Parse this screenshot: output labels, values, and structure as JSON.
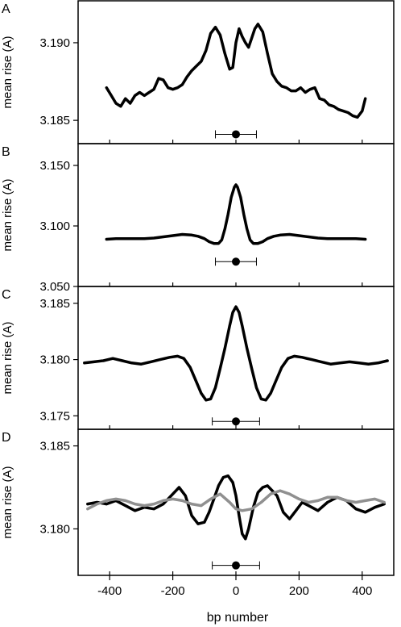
{
  "figure": {
    "xlabel": "bp number",
    "x_ticks": [
      -400,
      -200,
      0,
      200,
      400
    ],
    "x_tick_labels": [
      "-400",
      "-200",
      "0",
      "200",
      "400"
    ],
    "xlim": [
      -500,
      500
    ],
    "line_color": "#000000",
    "secondary_line_color": "#909090"
  },
  "chart_data": [
    {
      "type": "line",
      "panel": "A",
      "ylabel": "mean rise (A)",
      "ylim": [
        3.1835,
        3.1927
      ],
      "y_ticks": [
        3.185,
        3.19
      ],
      "y_tick_labels": [
        "3.185",
        "3.190"
      ],
      "marker": {
        "x": 0,
        "y": 3.1841,
        "err_low": -65,
        "err_high": 65
      },
      "series": [
        {
          "color": "#000000",
          "x": [
            -410,
            -395,
            -380,
            -365,
            -350,
            -335,
            -320,
            -305,
            -290,
            -275,
            -260,
            -245,
            -230,
            -215,
            -200,
            -185,
            -170,
            -155,
            -140,
            -125,
            -110,
            -95,
            -80,
            -65,
            -50,
            -35,
            -20,
            -10,
            0,
            10,
            20,
            30,
            40,
            50,
            60,
            70,
            85,
            100,
            115,
            130,
            145,
            160,
            175,
            190,
            205,
            220,
            235,
            250,
            265,
            280,
            295,
            310,
            325,
            340,
            355,
            370,
            385,
            400,
            410
          ],
          "y": [
            3.1871,
            3.1866,
            3.1861,
            3.1859,
            3.1864,
            3.1861,
            3.1866,
            3.1868,
            3.1866,
            3.1868,
            3.187,
            3.1877,
            3.1876,
            3.1871,
            3.187,
            3.1871,
            3.1873,
            3.1878,
            3.1882,
            3.1885,
            3.1888,
            3.1895,
            3.1906,
            3.191,
            3.1905,
            3.1893,
            3.1883,
            3.1884,
            3.19,
            3.1909,
            3.1904,
            3.19,
            3.1897,
            3.1903,
            3.1909,
            3.1912,
            3.1907,
            3.1893,
            3.188,
            3.1875,
            3.1872,
            3.1871,
            3.1869,
            3.1869,
            3.1871,
            3.1868,
            3.187,
            3.1871,
            3.1864,
            3.1863,
            3.186,
            3.1859,
            3.1857,
            3.1856,
            3.1855,
            3.1853,
            3.1852,
            3.1856,
            3.1864
          ]
        }
      ]
    },
    {
      "type": "line",
      "panel": "B",
      "ylabel": "mean rise (A)",
      "ylim": [
        3.05,
        3.168
      ],
      "y_ticks": [
        3.05,
        3.1,
        3.15
      ],
      "y_tick_labels": [
        "3.050",
        "3.100",
        "3.150"
      ],
      "marker": {
        "x": 0,
        "y": 3.0705,
        "err_low": -65,
        "err_high": 65
      },
      "series": [
        {
          "color": "#000000",
          "x": [
            -410,
            -380,
            -350,
            -320,
            -290,
            -260,
            -230,
            -200,
            -170,
            -140,
            -120,
            -100,
            -85,
            -70,
            -55,
            -45,
            -35,
            -25,
            -15,
            -5,
            0,
            5,
            15,
            25,
            35,
            45,
            55,
            70,
            85,
            100,
            120,
            140,
            170,
            200,
            230,
            260,
            290,
            320,
            350,
            380,
            410
          ],
          "y": [
            3.089,
            3.0895,
            3.0895,
            3.0895,
            3.0895,
            3.09,
            3.091,
            3.092,
            3.093,
            3.0925,
            3.0915,
            3.0895,
            3.087,
            3.0855,
            3.0855,
            3.0885,
            3.0975,
            3.1095,
            3.1235,
            3.132,
            3.134,
            3.132,
            3.1235,
            3.1095,
            3.0975,
            3.0885,
            3.0855,
            3.0855,
            3.087,
            3.0895,
            3.0915,
            3.0925,
            3.093,
            3.092,
            3.091,
            3.09,
            3.0895,
            3.0895,
            3.0895,
            3.0895,
            3.089
          ]
        }
      ]
    },
    {
      "type": "line",
      "panel": "C",
      "ylabel": "mean rise (A)",
      "ylim": [
        3.1738,
        3.1865
      ],
      "y_ticks": [
        3.175,
        3.18,
        3.185
      ],
      "y_tick_labels": [
        "3.175",
        "3.180",
        "3.185"
      ],
      "marker": {
        "x": 0,
        "y": 3.1745,
        "err_low": -75,
        "err_high": 75
      },
      "series": [
        {
          "color": "#000000",
          "x": [
            -480,
            -450,
            -420,
            -390,
            -360,
            -330,
            -300,
            -270,
            -240,
            -210,
            -185,
            -165,
            -145,
            -125,
            -110,
            -95,
            -80,
            -65,
            -50,
            -35,
            -20,
            -10,
            0,
            10,
            20,
            35,
            50,
            65,
            80,
            95,
            110,
            125,
            145,
            165,
            185,
            210,
            240,
            270,
            300,
            330,
            360,
            390,
            420,
            450,
            480
          ],
          "y": [
            3.1797,
            3.1798,
            3.1799,
            3.1801,
            3.1799,
            3.1797,
            3.1796,
            3.1798,
            3.18,
            3.1802,
            3.1803,
            3.1801,
            3.1793,
            3.178,
            3.177,
            3.1764,
            3.1765,
            3.1775,
            3.1792,
            3.181,
            3.183,
            3.1842,
            3.1847,
            3.1842,
            3.183,
            3.181,
            3.1792,
            3.1775,
            3.1765,
            3.1764,
            3.177,
            3.178,
            3.1793,
            3.1801,
            3.1803,
            3.1802,
            3.18,
            3.1798,
            3.1796,
            3.1797,
            3.1798,
            3.1797,
            3.1796,
            3.1797,
            3.1799
          ]
        }
      ]
    },
    {
      "type": "line",
      "panel": "D",
      "ylabel": "mean rise (A)",
      "ylim": [
        3.1772,
        3.186
      ],
      "y_ticks": [
        3.18,
        3.185
      ],
      "y_tick_labels": [
        "3.180",
        "3.185"
      ],
      "marker": {
        "x": 0,
        "y": 3.1778,
        "err_low": -75,
        "err_high": 75
      },
      "series": [
        {
          "color": "#000000",
          "x": [
            -470,
            -440,
            -410,
            -380,
            -350,
            -320,
            -290,
            -260,
            -230,
            -200,
            -180,
            -160,
            -140,
            -120,
            -100,
            -85,
            -70,
            -55,
            -40,
            -25,
            -10,
            0,
            10,
            20,
            30,
            40,
            55,
            70,
            85,
            100,
            115,
            130,
            150,
            170,
            190,
            210,
            230,
            260,
            290,
            320,
            350,
            380,
            410,
            440,
            470
          ],
          "y": [
            3.1815,
            3.1816,
            3.1815,
            3.1817,
            3.1814,
            3.1811,
            3.1813,
            3.1812,
            3.1815,
            3.1821,
            3.1825,
            3.182,
            3.1808,
            3.1803,
            3.1804,
            3.181,
            3.1818,
            3.1826,
            3.1831,
            3.1832,
            3.1828,
            3.182,
            3.1808,
            3.1797,
            3.1794,
            3.18,
            3.1813,
            3.1822,
            3.1825,
            3.1826,
            3.1823,
            3.182,
            3.181,
            3.1806,
            3.1811,
            3.1816,
            3.1814,
            3.1811,
            3.1816,
            3.1819,
            3.1817,
            3.1812,
            3.181,
            3.1813,
            3.1815
          ]
        },
        {
          "color": "#909090",
          "x": [
            -470,
            -440,
            -410,
            -380,
            -350,
            -320,
            -290,
            -260,
            -230,
            -200,
            -170,
            -140,
            -110,
            -80,
            -50,
            -20,
            0,
            20,
            50,
            80,
            110,
            140,
            170,
            200,
            230,
            260,
            290,
            320,
            350,
            380,
            410,
            440,
            470
          ],
          "y": [
            3.1812,
            3.1815,
            3.1817,
            3.1818,
            3.1817,
            3.1815,
            3.1814,
            3.1815,
            3.1817,
            3.1818,
            3.1817,
            3.1815,
            3.1814,
            3.1818,
            3.1821,
            3.1816,
            3.1812,
            3.1811,
            3.1812,
            3.1816,
            3.1821,
            3.1823,
            3.1821,
            3.1818,
            3.1816,
            3.1817,
            3.1819,
            3.1819,
            3.1817,
            3.1816,
            3.1817,
            3.1818,
            3.1816
          ]
        }
      ]
    }
  ]
}
